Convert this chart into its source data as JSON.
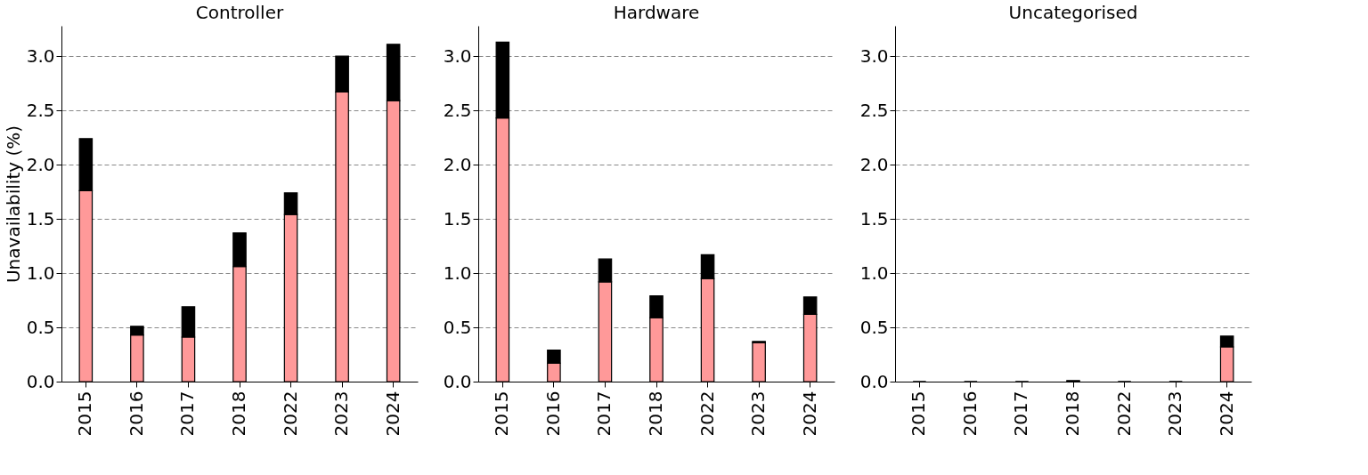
{
  "chart_data": [
    {
      "type": "bar",
      "title": "Controller",
      "ylabel": "Unavailability (%)",
      "stacked": true,
      "grid": "y",
      "legend": false,
      "categories": [
        "2015",
        "2016",
        "2017",
        "2018",
        "2022",
        "2023",
        "2024"
      ],
      "ylim": [
        0,
        3.28
      ],
      "yticks": [
        {
          "value": 0,
          "label": "0.0"
        },
        0.5,
        {
          "value": 1,
          "label": "1.0"
        },
        1.5,
        {
          "value": 2,
          "label": "2.0"
        },
        2.5,
        {
          "value": 3,
          "label": "3.0"
        }
      ],
      "series": [
        {
          "color": "#ff9999",
          "values": [
            1.76,
            0.43,
            0.41,
            1.06,
            1.54,
            2.67,
            2.59
          ]
        },
        {
          "color": "#000000",
          "values": [
            0.48,
            0.08,
            0.28,
            0.31,
            0.2,
            0.33,
            0.52
          ]
        }
      ]
    },
    {
      "type": "bar",
      "title": "Hardware",
      "stacked": true,
      "grid": "y",
      "legend": false,
      "categories": [
        "2015",
        "2016",
        "2017",
        "2018",
        "2022",
        "2023",
        "2024"
      ],
      "ylim": [
        0,
        3.28
      ],
      "yticks": [
        {
          "value": 0,
          "label": "0.0"
        },
        0.5,
        {
          "value": 1,
          "label": "1.0"
        },
        1.5,
        {
          "value": 2,
          "label": "2.0"
        },
        2.5,
        {
          "value": 3,
          "label": "3.0"
        }
      ],
      "series": [
        {
          "color": "#ff9999",
          "values": [
            2.43,
            0.17,
            0.92,
            0.59,
            0.95,
            0.36,
            0.62
          ]
        },
        {
          "color": "#000000",
          "values": [
            0.7,
            0.12,
            0.21,
            0.2,
            0.22,
            0.01,
            0.16
          ]
        }
      ]
    },
    {
      "type": "bar",
      "title": "Uncategorised",
      "stacked": true,
      "grid": "y",
      "legend": false,
      "categories": [
        "2015",
        "2016",
        "2017",
        "2018",
        "2022",
        "2023",
        "2024"
      ],
      "ylim": [
        0,
        3.28
      ],
      "yticks": [
        {
          "value": 0,
          "label": "0.0"
        },
        0.5,
        {
          "value": 1,
          "label": "1.0"
        },
        1.5,
        {
          "value": 2,
          "label": "2.0"
        },
        2.5,
        {
          "value": 3,
          "label": "3.0"
        }
      ],
      "series": [
        {
          "color": "#ff9999",
          "values": [
            0,
            0,
            0,
            null,
            0,
            0,
            0.32
          ]
        },
        {
          "color": "#000000",
          "values": [
            0,
            0,
            0,
            0.01,
            0,
            0,
            0.1
          ]
        }
      ]
    }
  ]
}
